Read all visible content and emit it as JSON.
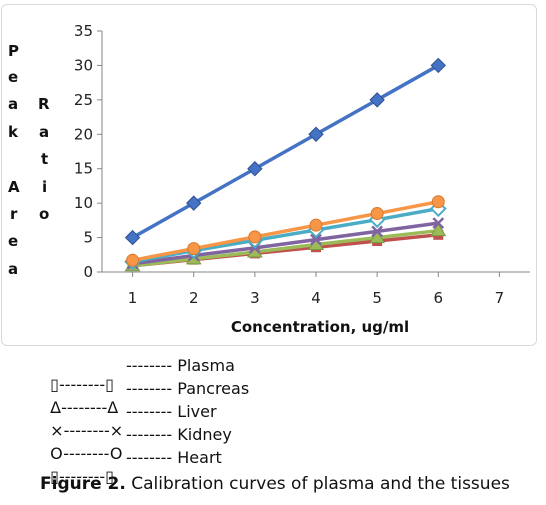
{
  "chart_data": {
    "type": "line",
    "title": "",
    "xlabel": "Concentration, ug/ml",
    "ylabel": "Peak Area Ratio",
    "x": [
      1,
      2,
      3,
      4,
      5,
      6
    ],
    "xlim": [
      0.5,
      7
    ],
    "xticks": [
      "1",
      "2",
      "3",
      "4",
      "5",
      "6",
      "7"
    ],
    "ylim": [
      0,
      35
    ],
    "yticks": [
      "0",
      "5",
      "10",
      "15",
      "20",
      "25",
      "30",
      "35"
    ],
    "grid": false,
    "series": [
      {
        "color": "#4472c4",
        "marker": "diamond-filled",
        "values": [
          5,
          10,
          15,
          20,
          25,
          30
        ]
      },
      {
        "color": "#f79646",
        "marker": "circle-filled",
        "values": [
          1.7,
          3.4,
          5.1,
          6.8,
          8.5,
          10.2
        ]
      },
      {
        "color": "#4bacc6",
        "marker": "diamond-open",
        "values": [
          1.5,
          3.1,
          4.6,
          6.1,
          7.6,
          9.2
        ]
      },
      {
        "color": "#8064a2",
        "marker": "cross",
        "values": [
          1.2,
          2.4,
          3.5,
          4.7,
          5.9,
          7.1
        ]
      },
      {
        "color": "#9bbb59",
        "marker": "triangle",
        "values": [
          0.9,
          1.9,
          2.9,
          4.0,
          5.0,
          6.0
        ]
      },
      {
        "color": "#c0504d",
        "marker": "square",
        "values": [
          0.9,
          1.8,
          2.7,
          3.6,
          4.5,
          5.4
        ]
      }
    ]
  },
  "legend": [
    {
      "symbols": "▯--------▯",
      "label": "-------- Plasma"
    },
    {
      "symbols": "Δ--------Δ",
      "label": "-------- Pancreas"
    },
    {
      "symbols": "×--------×",
      "label": "-------- Liver"
    },
    {
      "symbols": "O--------O",
      "label": "-------- Kidney"
    },
    {
      "symbols": "▯--------▯",
      "label": "-------- Heart"
    }
  ],
  "caption": {
    "figure_label": "Figure 2.",
    "text": " Calibration curves of plasma and the tissues"
  }
}
